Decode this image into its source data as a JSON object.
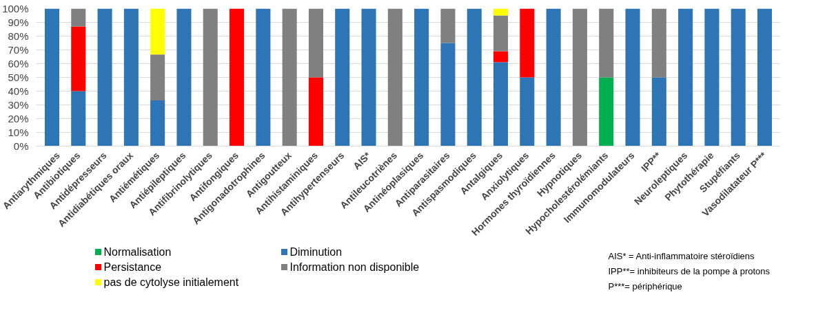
{
  "chart_data": {
    "type": "bar",
    "stacked": true,
    "categories": [
      "Antiarythmiques",
      "Antibiotiques",
      "Antidépresseurs",
      "Antidiabétiques oraux",
      "Antiémétiques",
      "Antiépileptiques",
      "Antifibrinolytiques",
      "Antifongiques",
      "Antigonadotrophines",
      "Antigoutteux",
      "Antihistaminiques",
      "Antihypertenseurs",
      "AIS*",
      "Antileucotriènes",
      "Antinéoplasiques",
      "Antiparasitaires",
      "Antispasmodiques",
      "Antalgiques",
      "Anxiolytiques",
      "Hormones thyroïdiennes",
      "Hypnotiques",
      "Hypocholestérolémiants",
      "Immunomodulateurs",
      "IPP**",
      "Neuroleptiques",
      "Phytothérapie",
      "Stupéfiants",
      "Vasodilatateur P***"
    ],
    "series": [
      {
        "name": "Normalisation",
        "color": "#00b050",
        "values": [
          0,
          0,
          0,
          0,
          0,
          0,
          0,
          0,
          0,
          0,
          0,
          0,
          0,
          0,
          0,
          0,
          0,
          0,
          0,
          0,
          0,
          50,
          0,
          0,
          0,
          0,
          0,
          0
        ]
      },
      {
        "name": "Diminution",
        "color": "#2e75b6",
        "values": [
          100,
          40,
          100,
          100,
          33.3,
          100,
          0,
          0,
          100,
          0,
          0,
          100,
          100,
          0,
          100,
          75,
          100,
          61,
          50,
          100,
          0,
          0,
          100,
          50,
          100,
          100,
          100,
          100
        ]
      },
      {
        "name": "Persistance",
        "color": "#ff0000",
        "values": [
          0,
          47,
          0,
          0,
          0,
          0,
          0,
          100,
          0,
          0,
          50,
          0,
          0,
          0,
          0,
          0,
          0,
          8,
          50,
          0,
          0,
          0,
          0,
          0,
          0,
          0,
          0,
          0
        ]
      },
      {
        "name": "Information non disponible",
        "color": "#808080",
        "values": [
          0,
          13,
          0,
          0,
          33.3,
          0,
          100,
          0,
          0,
          100,
          50,
          0,
          0,
          100,
          0,
          25,
          0,
          26,
          0,
          0,
          100,
          50,
          0,
          50,
          0,
          0,
          0,
          0
        ]
      },
      {
        "name": "pas de cytolyse initialement",
        "color": "#ffff00",
        "values": [
          0,
          0,
          0,
          0,
          33.4,
          0,
          0,
          0,
          0,
          0,
          0,
          0,
          0,
          0,
          0,
          0,
          0,
          5,
          0,
          0,
          0,
          0,
          0,
          0,
          0,
          0,
          0,
          0
        ]
      }
    ],
    "ylim": [
      0,
      100
    ],
    "yticks": [
      {
        "value": 0,
        "label": "0%"
      },
      {
        "value": 10,
        "label": "10%"
      },
      {
        "value": 20,
        "label": "20%"
      },
      {
        "value": 30,
        "label": "30%"
      },
      {
        "value": 40,
        "label": "40%"
      },
      {
        "value": 50,
        "label": "50%"
      },
      {
        "value": 60,
        "label": "60%"
      },
      {
        "value": 70,
        "label": "70%"
      },
      {
        "value": 80,
        "label": "80%"
      },
      {
        "value": 90,
        "label": "90%"
      },
      {
        "value": 100,
        "label": "100%"
      }
    ],
    "grid": "y",
    "legend": "bottom left",
    "annotations": [
      "AIS* = Anti-inflammatoire stéroïdiens",
      "IPP**= inhibiteurs de  la pompe à protons",
      "P***= périphérique"
    ]
  }
}
